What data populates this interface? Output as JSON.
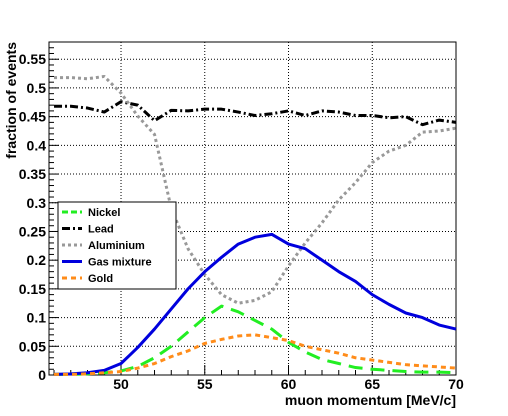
{
  "chart_data": {
    "type": "line",
    "title": "",
    "xlabel": "muon momentum [MeV/c]",
    "ylabel": "fraction of events",
    "xlim": [
      45.7,
      70
    ],
    "ylim": [
      0,
      0.58
    ],
    "grid": true,
    "legend_position": "left",
    "x_ticks": [
      50,
      55,
      60,
      65,
      70
    ],
    "y_ticks": [
      0,
      0.05,
      0.1,
      0.15,
      0.2,
      0.25,
      0.3,
      0.35,
      0.4,
      0.45,
      0.5,
      0.55
    ],
    "x": [
      46,
      47,
      48,
      49,
      50,
      51,
      52,
      53,
      54,
      55,
      56,
      57,
      58,
      59,
      60,
      61,
      62,
      63,
      64,
      65,
      66,
      67,
      68,
      69,
      70
    ],
    "series": [
      {
        "name": "Nickel",
        "color": "#22ee22",
        "dash": "dashed",
        "values": [
          0.001,
          0.001,
          0.002,
          0.004,
          0.007,
          0.015,
          0.03,
          0.05,
          0.075,
          0.1,
          0.12,
          0.11,
          0.095,
          0.08,
          0.057,
          0.04,
          0.027,
          0.02,
          0.013,
          0.01,
          0.008,
          0.006,
          0.005,
          0.005,
          0.004
        ]
      },
      {
        "name": "Lead",
        "color": "#000000",
        "dash": "dashdot",
        "values": [
          0.468,
          0.468,
          0.465,
          0.458,
          0.476,
          0.47,
          0.443,
          0.461,
          0.46,
          0.463,
          0.463,
          0.458,
          0.452,
          0.455,
          0.46,
          0.452,
          0.46,
          0.458,
          0.452,
          0.452,
          0.448,
          0.45,
          0.436,
          0.444,
          0.44
        ]
      },
      {
        "name": "Aluminium",
        "color": "#999999",
        "dash": "dotted",
        "values": [
          0.518,
          0.518,
          0.516,
          0.52,
          0.491,
          0.451,
          0.419,
          0.29,
          0.22,
          0.175,
          0.14,
          0.125,
          0.13,
          0.145,
          0.19,
          0.23,
          0.265,
          0.305,
          0.335,
          0.37,
          0.39,
          0.4,
          0.423,
          0.425,
          0.43
        ]
      },
      {
        "name": "Gas mixture",
        "color": "#0000dd",
        "dash": "solid",
        "values": [
          0.001,
          0.002,
          0.004,
          0.008,
          0.02,
          0.048,
          0.08,
          0.115,
          0.15,
          0.18,
          0.205,
          0.228,
          0.24,
          0.245,
          0.228,
          0.22,
          0.2,
          0.18,
          0.163,
          0.14,
          0.123,
          0.108,
          0.1,
          0.087,
          0.08
        ]
      },
      {
        "name": "Gold",
        "color": "#ff8c1a",
        "dash": "dashed-short",
        "values": [
          0.001,
          0.001,
          0.002,
          0.004,
          0.006,
          0.012,
          0.02,
          0.032,
          0.042,
          0.055,
          0.062,
          0.068,
          0.07,
          0.065,
          0.06,
          0.05,
          0.044,
          0.038,
          0.03,
          0.026,
          0.022,
          0.018,
          0.016,
          0.014,
          0.012
        ]
      }
    ]
  }
}
